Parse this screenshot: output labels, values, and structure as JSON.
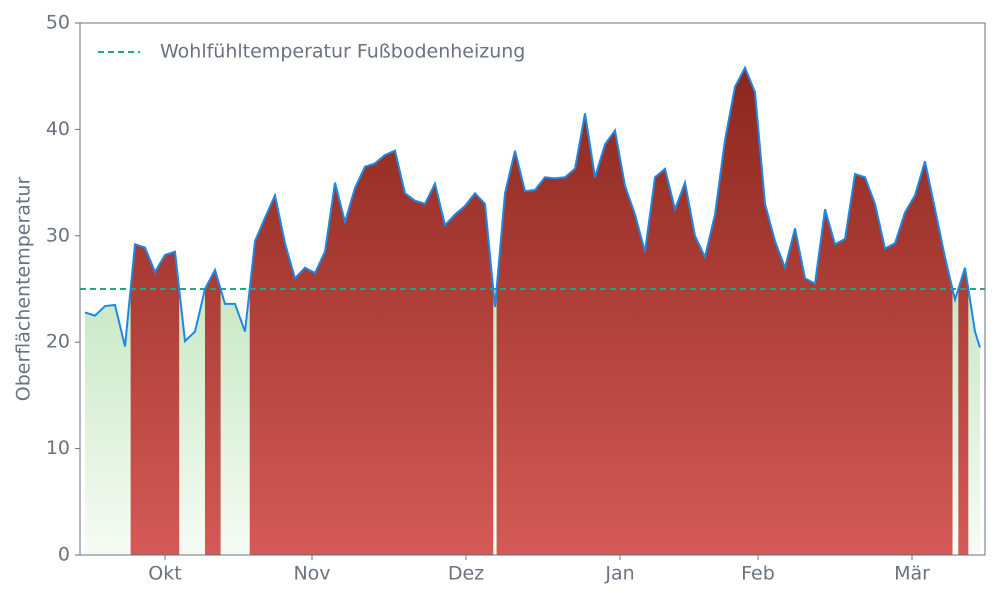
{
  "chart_data": {
    "type": "line",
    "y_label": "Oberflächentemperatur",
    "x": [
      0,
      2,
      4,
      6,
      8,
      10,
      12,
      14,
      16,
      18,
      20,
      22,
      24,
      26,
      28,
      30,
      32,
      34,
      36,
      38,
      40,
      42,
      44,
      46,
      48,
      50,
      52,
      54,
      56,
      58,
      60,
      62,
      64,
      66,
      68,
      70,
      72,
      74,
      76,
      78,
      80,
      82,
      84,
      86,
      88,
      90,
      92,
      94,
      96,
      98,
      100,
      102,
      104,
      106,
      108,
      110,
      112,
      114,
      116,
      118,
      120,
      122,
      124,
      126,
      128,
      130,
      132,
      134,
      136,
      138,
      140,
      142,
      144,
      146,
      148,
      150,
      152,
      154,
      156,
      158,
      160,
      162,
      164,
      166,
      168,
      170,
      172,
      174,
      176,
      178,
      179
    ],
    "series": [
      {
        "name": "Oberflächentemperatur",
        "color": "#1e88e5",
        "values": [
          22.8,
          22.5,
          23.4,
          23.5,
          19.6,
          29.2,
          28.9,
          26.6,
          28.2,
          28.5,
          20.1,
          21,
          25,
          26.8,
          23.6,
          23.6,
          21,
          29.5,
          31.7,
          33.8,
          29.3,
          26,
          27,
          26.5,
          28.5,
          35,
          31.3,
          34.5,
          36.5,
          36.8,
          37.6,
          38,
          34,
          33.3,
          33,
          34.9,
          31,
          32,
          32.8,
          34,
          33,
          23.3,
          34,
          38,
          34.2,
          34.3,
          35.5,
          35.4,
          35.5,
          36.3,
          41.5,
          35.5,
          38.6,
          39.9,
          34.7,
          32,
          28.5,
          35.5,
          36.3,
          32.5,
          35,
          30,
          28,
          32,
          39,
          44,
          45.8,
          43.5,
          33,
          29.5,
          27,
          30.7,
          26,
          25.5,
          32.5,
          29.2,
          29.7,
          35.8,
          35.5,
          33,
          28.8,
          29.3,
          32.2,
          33.8,
          37,
          32.5,
          28,
          24,
          27,
          21,
          19.5
        ]
      }
    ],
    "threshold": {
      "name": "Wohlfühltemperatur Fußbodenheizung",
      "value": 25,
      "color": "#1aab80"
    },
    "xlim": [
      -1,
      180
    ],
    "xticks": [
      {
        "value": 16,
        "label": "Okt"
      },
      {
        "value": 45.4,
        "label": "Nov"
      },
      {
        "value": 76.2,
        "label": "Dez"
      },
      {
        "value": 107,
        "label": "Jan"
      },
      {
        "value": 134.6,
        "label": "Feb"
      },
      {
        "value": 165.4,
        "label": "Mär"
      }
    ],
    "ylim": [
      0,
      50
    ],
    "yticks": [
      0,
      10,
      20,
      30,
      40,
      50
    ],
    "above_color": "#c0392b",
    "below_color": "#9fd89a",
    "legend": "upper left",
    "grid": false
  }
}
